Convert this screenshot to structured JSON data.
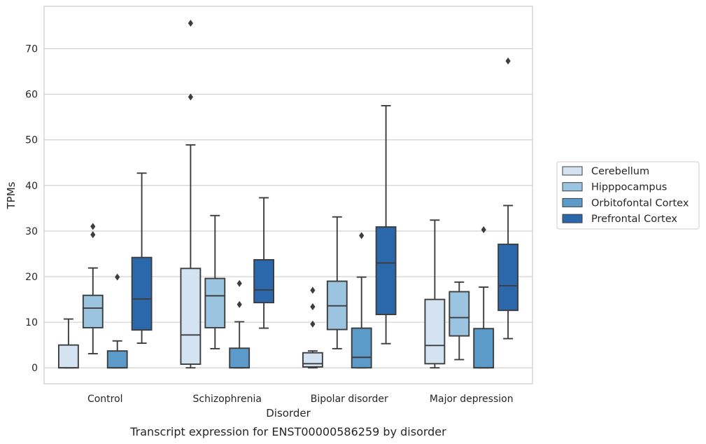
{
  "caption": "Transcript expression for ENST00000586259 by disorder",
  "chart_data": {
    "type": "box",
    "xlabel": "Disorder",
    "ylabel": "TPMs",
    "ylim": [
      -3.5,
      79.3
    ],
    "yticks": [
      0,
      10,
      20,
      30,
      40,
      50,
      60,
      70
    ],
    "grid": "horizontal",
    "legend_position": "right",
    "categories": [
      "Control",
      "Schizophrenia",
      "Bipolar disorder",
      "Major depression"
    ],
    "series": [
      {
        "name": "Cerebellum",
        "color": "#d3e3f2",
        "boxes": [
          {
            "whislo": 0,
            "q1": 0,
            "med": 0,
            "q3": 5.0,
            "whishi": 10.7,
            "fliers": []
          },
          {
            "whislo": 0,
            "q1": 0.8,
            "med": 7.2,
            "q3": 21.8,
            "whishi": 48.9,
            "fliers": [
              59.4,
              75.6
            ]
          },
          {
            "whislo": 0,
            "q1": 0.2,
            "med": 0.9,
            "q3": 3.3,
            "whishi": 3.7,
            "fliers": [
              9.6,
              13.4,
              17.0
            ]
          },
          {
            "whislo": 0,
            "q1": 0.9,
            "med": 4.9,
            "q3": 15.0,
            "whishi": 32.4,
            "fliers": []
          }
        ]
      },
      {
        "name": "Hipppocampus",
        "color": "#9ac4e0",
        "boxes": [
          {
            "whislo": 3.1,
            "q1": 8.8,
            "med": 13.1,
            "q3": 15.9,
            "whishi": 21.9,
            "fliers": [
              29.2,
              31.0
            ]
          },
          {
            "whislo": 4.2,
            "q1": 8.8,
            "med": 15.8,
            "q3": 19.6,
            "whishi": 33.4,
            "fliers": []
          },
          {
            "whislo": 4.2,
            "q1": 8.4,
            "med": 13.6,
            "q3": 19.0,
            "whishi": 33.1,
            "fliers": []
          },
          {
            "whislo": 1.8,
            "q1": 7.0,
            "med": 11.0,
            "q3": 16.7,
            "whishi": 18.8,
            "fliers": []
          }
        ]
      },
      {
        "name": "Orbitofontal Cortex",
        "color": "#5b9ac9",
        "boxes": [
          {
            "whislo": 0,
            "q1": 0,
            "med": 0,
            "q3": 3.7,
            "whishi": 5.9,
            "fliers": [
              19.9
            ]
          },
          {
            "whislo": 0,
            "q1": 0,
            "med": 0,
            "q3": 4.3,
            "whishi": 10.1,
            "fliers": [
              13.9,
              18.5
            ]
          },
          {
            "whislo": 0,
            "q1": 0,
            "med": 2.3,
            "q3": 8.7,
            "whishi": 19.9,
            "fliers": [
              29.0
            ]
          },
          {
            "whislo": 0,
            "q1": 0,
            "med": 0,
            "q3": 8.6,
            "whishi": 17.7,
            "fliers": [
              30.3
            ]
          }
        ]
      },
      {
        "name": "Prefrontal Cortex",
        "color": "#2a68ab",
        "boxes": [
          {
            "whislo": 5.4,
            "q1": 8.3,
            "med": 15.1,
            "q3": 24.2,
            "whishi": 42.7,
            "fliers": []
          },
          {
            "whislo": 8.7,
            "q1": 14.3,
            "med": 17.1,
            "q3": 23.7,
            "whishi": 37.3,
            "fliers": []
          },
          {
            "whislo": 5.3,
            "q1": 11.7,
            "med": 23.0,
            "q3": 30.9,
            "whishi": 57.5,
            "fliers": []
          },
          {
            "whislo": 6.4,
            "q1": 12.6,
            "med": 18.0,
            "q3": 27.1,
            "whishi": 35.6,
            "fliers": [
              67.3
            ]
          }
        ]
      }
    ]
  }
}
